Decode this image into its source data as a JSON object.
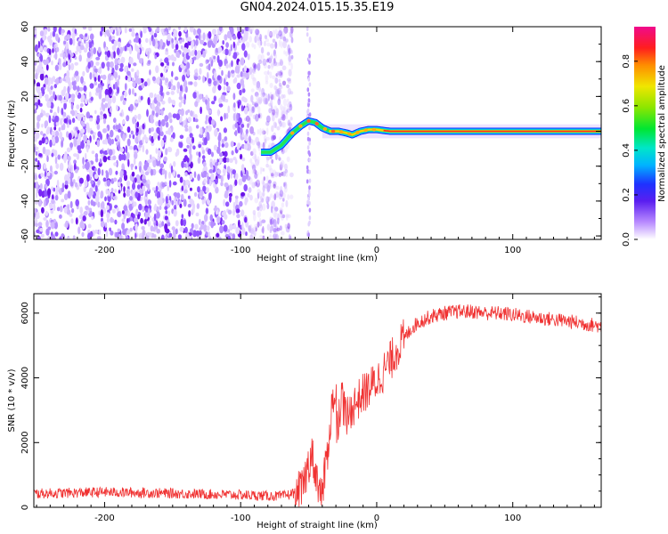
{
  "title": "GN04.2024.015.15.35.E19",
  "colorbar": {
    "label": "Normalized spectral amplitude",
    "ticks": [
      "0.0",
      "0.2",
      "0.4",
      "0.6",
      "0.8"
    ]
  },
  "chart_data": [
    {
      "type": "heatmap",
      "name": "spectrogram",
      "xlabel": "Height of straight line (km)",
      "ylabel": "Frequency (Hz)",
      "xlim": [
        -252,
        165
      ],
      "ylim": [
        -62,
        60
      ],
      "xticks": [
        -200,
        -100,
        0,
        100
      ],
      "yticks": [
        -60,
        -40,
        -20,
        0,
        20,
        40,
        60
      ],
      "color_scale": "rainbow (0 = white/violet, 1 = magenta-red)",
      "value_range": [
        0,
        1
      ],
      "ridge": {
        "description": "narrow-band signal line",
        "x": [
          -85,
          -78,
          -70,
          -62,
          -56,
          -50,
          -45,
          -40,
          -34,
          -28,
          -22,
          -18,
          -12,
          -6,
          0,
          10,
          30,
          60,
          100,
          165
        ],
        "frequency": [
          -12,
          -12,
          -8,
          -1,
          3,
          6,
          5,
          2,
          0,
          0,
          -1,
          -2,
          0,
          1,
          1,
          0,
          0,
          0,
          0,
          0
        ]
      },
      "noise_region_x": [
        -252,
        -70
      ]
    },
    {
      "type": "line",
      "name": "snr",
      "xlabel": "Height of straight line (km)",
      "ylabel": "SNR (10 * v/v)",
      "xlim": [
        -252,
        165
      ],
      "ylim": [
        0,
        6600
      ],
      "xticks": [
        -200,
        -100,
        0,
        100
      ],
      "yticks": [
        0,
        2000,
        4000,
        6000
      ],
      "color": "#f03232",
      "series": [
        {
          "x": [
            -252,
            -200,
            -150,
            -100,
            -70,
            -55,
            -48,
            -44,
            -40,
            -36,
            -32,
            -29,
            -26,
            -22,
            -18,
            -14,
            -10,
            -5,
            0,
            5,
            10,
            15,
            20,
            25,
            30,
            40,
            50,
            60,
            70,
            80,
            90,
            100,
            120,
            140,
            165
          ],
          "values": [
            420,
            470,
            430,
            380,
            340,
            500,
            1700,
            900,
            350,
            1800,
            3500,
            2500,
            3400,
            2700,
            3100,
            3300,
            3500,
            3700,
            3900,
            4200,
            4500,
            4900,
            5200,
            5500,
            5700,
            5900,
            6000,
            6050,
            6050,
            6000,
            6000,
            5950,
            5850,
            5750,
            5600
          ]
        }
      ]
    }
  ]
}
